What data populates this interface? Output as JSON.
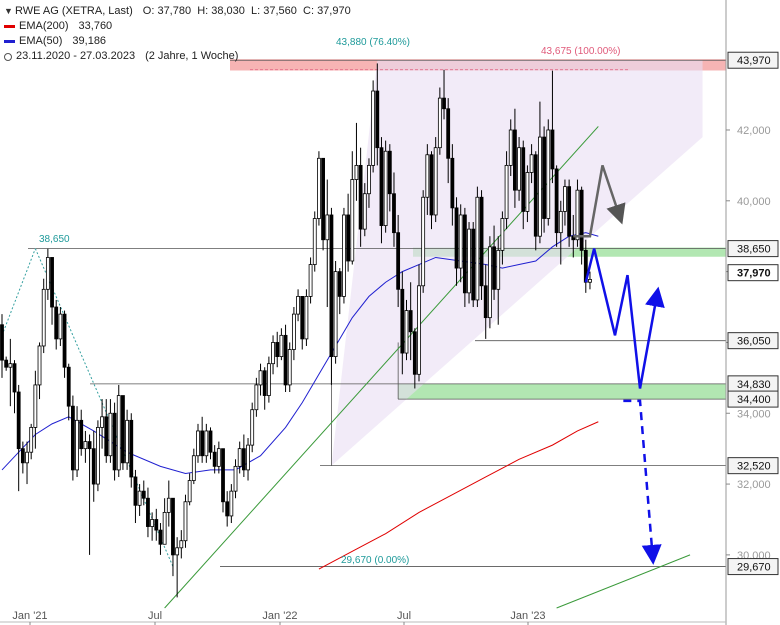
{
  "legend": {
    "title": "RWE AG (XETRA, Last)",
    "ohlc": "O: 37,780  H: 38,030  L: 37,560  C: 37,970",
    "ema200_label": "EMA(200)",
    "ema200_value": "33,760",
    "ema200_color": "#e00000",
    "ema50_label": "EMA(50)",
    "ema50_value": "39,186",
    "ema50_color": "#2020d0",
    "range": "23.11.2020 - 27.03.2023",
    "range_note": "(2 Jahre, 1 Woche)"
  },
  "annotations": {
    "fib_top": "43,880 (76.40%)",
    "fib_high": "43,675 (100.00%)",
    "fib_low": "29,670 (0.00%)",
    "left_high": "38,650"
  },
  "chart_data": {
    "type": "candlestick",
    "x_ticks": [
      "Jan '21",
      "Jul",
      "Jan '22",
      "Jul",
      "Jan '23"
    ],
    "y_ticks": [
      30000,
      32000,
      34000,
      36000,
      38000,
      40000,
      42000
    ],
    "y_tick_labels": [
      "30,000",
      "32,000",
      "34,000",
      "36,000",
      "38,000",
      "40,000",
      "42,000"
    ],
    "ylim": [
      28500,
      44400
    ],
    "levels": [
      {
        "value": 43970,
        "label": "43,970",
        "style": "box"
      },
      {
        "value": 38650,
        "label": "38,650",
        "style": "box"
      },
      {
        "value": 37970,
        "label": "37,970",
        "style": "current"
      },
      {
        "value": 36050,
        "label": "36,050",
        "style": "box"
      },
      {
        "value": 34830,
        "label": "34,830",
        "style": "box"
      },
      {
        "value": 34400,
        "label": "34,400",
        "style": "box"
      },
      {
        "value": 32520,
        "label": "32,520",
        "style": "box"
      },
      {
        "value": 29670,
        "label": "29,670",
        "style": "box"
      }
    ],
    "zones": [
      {
        "from": 43680,
        "to": 44000,
        "color": "#f4a7a7"
      },
      {
        "from": 38420,
        "to": 38680,
        "color": "#a5e3a5"
      },
      {
        "from": 34400,
        "to": 34830,
        "color": "#a5e3a5"
      }
    ],
    "candles_csv": "0,36500,36800,35000,35500;1,35500,35600,35200,35300;2,35300,36100,34200,35400;3,35400,35500,34000,34600;4,34600,34800,31800,33000;5,33000,33200,32300,32600;6,32600,33200,32000,32900;7,32900,33700,32700,33600;8,33600,35200,33000,34800;9,34800,36000,34400,35900;10,35900,37800,35700,37500;11,37500,38650,37200,38400;12,38400,38200,36500,37000;13,37000,37200,35800,36100;14,36100,37000,35900,36800;15,36800,36900,35000,35300;16,35300,35400,33800,34200;17,34200,34500,32100,32400;18,32400,34200,32200,33800;19,33800,34100,32800,33000;20,33000,33500,32600,33200;21,33200,33400,30000,33000;22,33000,33500,31500,32000;23,32000,33800,31800,33600;24,33600,34400,33000,33900;25,33900,34400,32600,32800;26,32800,34400,32600,34000;27,34000,34300,32100,32400;28,32400,34800,32200,34500;29,34500,34200,32400,32600;30,32600,34100,32400,33800;31,33800,34000,31900,32200;32,32200,32400,30900,31400;33,31400,32000,31100,31800;34,31800,32100,31400,31600;35,31600,31900,30500,30800;36,30800,31200,30400,31000;37,31000,31300,30400,30700;38,30700,30900,30000,30300;39,30300,31600,30300,31200;40,31200,32100,30800,31600;41,31600,31400,29400,30000;42,30000,30500,28800,30200;43,30200,30700,29900,30400;44,30400,31700,30200,31500;45,31500,32300,31400,32100;46,32100,33000,32000,32800;47,32800,33700,32600,33500;48,33500,33900,32600,32800;49,32800,33700,32600,33500;50,33500,33600,32700,32900;51,32900,33100,32300,32500;52,32500,33200,32300,33000;53,33000,32800,31200,31500;54,31500,31800,30800,31100;55,31100,32000,30900,31800;56,31800,32700,31600,32500;57,32500,33200,32300,33000;58,33000,33400,32200,32400;59,32400,33300,32100,33100;60,33100,34300,32900,34100;61,34100,35000,33900,34800;62,34800,35400,34500,35200;63,35200,35300,34100,34500;64,34500,35600,34300,35400;65,35400,36200,35100,36000;66,36000,36300,35300,35600;67,35600,36400,35500,36200;68,36200,36500,34600,34800;69,34800,36000,34600,35800;70,35800,37000,35500,36800;71,36800,37500,36600,37300;72,37300,37300,35800,36100;73,36100,37500,35900,37300;74,37300,38400,37100,38200;75,38200,39700,38000,39500;76,39500,41400,39300,41200;77,41200,41100,38600,38900;78,38900,40600,37000,39600;79,39600,39800,34800,35600;80,35600,38300,35400,38000;81,38000,38100,36800,37300;82,37300,39800,37100,39600;83,39600,40200,38000,38300;84,38300,41400,38200,40600;85,40600,42200,40000,41000;86,41000,41500,38700,39200;87,39200,40500,39000,40200;88,40200,41200,39800,41000;89,41000,43400,40800,43100;90,43100,43880,41000,41500;91,41500,41800,38800,39300;92,39300,41700,39100,41400;93,41400,41600,39700,40200;94,40200,40800,38700,39100;95,39100,39600,37000,37500;96,37500,38000,35100,35700;97,35700,37200,35500,36900;98,36900,37700,35500,36300;99,36300,36400,34700,35100;100,35100,38200,34900,37600;101,37600,40300,37400,40100;102,40100,41600,39600,41300;103,41300,41400,39200,39600;104,39600,41800,39400,41500;105,41500,43200,41300,42900;106,42900,43700,42300,42600;107,42600,42900,40500,41200;108,41200,41600,39300,39800;109,39800,40100,37600,38100;110,38100,39900,37700,39600;111,39600,39800,37000,37400;112,37400,39400,37100,39200;113,39200,39400,37000,37200;114,37200,40400,37000,40100;115,40100,40300,37200,37600;116,37600,38200,36100,36700;117,36700,39000,36400,38700;118,38700,39300,37200,37500;119,37500,39000,36500,38600;120,38600,39700,38200,39500;121,39500,41400,39200,41000;122,41000,42300,40700,42000;123,42000,42600,39800,40300;124,40300,41800,40000,41500;125,41500,41700,39200,39700;126,39700,41000,39400,40800;127,40800,41600,40500,41300;128,41300,41400,38600,39000;129,39000,42800,38800,41800;130,41800,42100,39100,39500;131,39500,42300,39300,42000;132,42000,43675,40500,40900;133,40900,41000,38700,39100;134,39100,40000,38200,39700;135,39700,40600,39300,40400;136,40400,40600,38700,39000;137,39000,39600,38400,38900;138,38900,40600,38700,40300;139,40300,40400,38200,38600;140,38600,38900,37400,37700;141,37700,38000,37500,37780",
    "ema50": [
      [
        0,
        32400
      ],
      [
        4,
        32900
      ],
      [
        8,
        33400
      ],
      [
        12,
        33700
      ],
      [
        16,
        33900
      ],
      [
        22,
        33500
      ],
      [
        30,
        32900
      ],
      [
        38,
        32500
      ],
      [
        44,
        32300
      ],
      [
        50,
        32400
      ],
      [
        56,
        32400
      ],
      [
        62,
        32800
      ],
      [
        68,
        33600
      ],
      [
        72,
        34300
      ],
      [
        76,
        35100
      ],
      [
        80,
        35900
      ],
      [
        84,
        36700
      ],
      [
        88,
        37300
      ],
      [
        92,
        37700
      ],
      [
        96,
        38000
      ],
      [
        100,
        38200
      ],
      [
        104,
        38400
      ],
      [
        110,
        38300
      ],
      [
        116,
        38200
      ],
      [
        120,
        38100
      ],
      [
        124,
        38200
      ],
      [
        128,
        38300
      ],
      [
        132,
        38700
      ],
      [
        136,
        39000
      ],
      [
        140,
        39100
      ],
      [
        143,
        39000
      ]
    ],
    "ema200": [
      [
        76,
        29600
      ],
      [
        84,
        30100
      ],
      [
        92,
        30600
      ],
      [
        100,
        31200
      ],
      [
        108,
        31700
      ],
      [
        116,
        32200
      ],
      [
        124,
        32700
      ],
      [
        132,
        33100
      ],
      [
        138,
        33500
      ],
      [
        143,
        33760
      ]
    ],
    "trendlines": [
      {
        "name": "uptrend",
        "points": [
          [
            39,
            28500
          ],
          [
            143,
            42100
          ]
        ],
        "color": "#3a9a3a"
      },
      {
        "name": "long-uptrend",
        "points": [
          [
            133,
            28500
          ],
          [
            165,
            30000
          ]
        ],
        "color": "#3a9a3a"
      },
      {
        "name": "dotted-rise",
        "points": [
          [
            0,
            36200
          ],
          [
            8,
            38650
          ]
        ],
        "color": "#35a0a0",
        "dash": true
      },
      {
        "name": "dotted-fall",
        "points": [
          [
            8,
            38650
          ],
          [
            41,
            29670
          ]
        ],
        "color": "#35a0a0",
        "dash": true
      }
    ],
    "triangle": [
      [
        79,
        32520
      ],
      [
        90,
        43970
      ],
      [
        168,
        43970
      ],
      [
        168,
        41800
      ],
      [
        79,
        32520
      ]
    ],
    "scenario_grey": [
      [
        137,
        39000
      ],
      [
        141,
        39000
      ],
      [
        144,
        41000
      ],
      [
        148,
        39600
      ]
    ],
    "scenario_blue": [
      [
        140,
        37700
      ],
      [
        142,
        38650
      ],
      [
        147,
        36200
      ],
      [
        150,
        37900
      ],
      [
        153,
        34700
      ],
      [
        157,
        37300
      ]
    ],
    "scenario_blue_dashed": [
      [
        149,
        34350
      ],
      [
        153,
        34350
      ],
      [
        156,
        30000
      ]
    ]
  }
}
